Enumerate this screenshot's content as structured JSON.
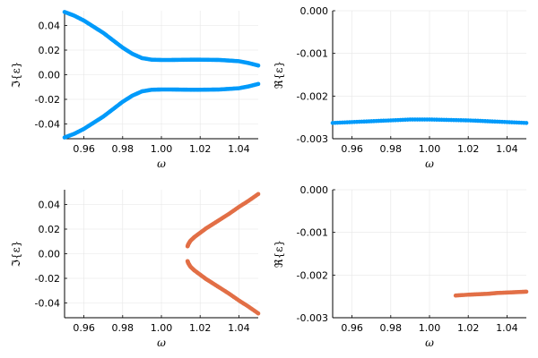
{
  "chart_data": [
    {
      "type": "scatter",
      "panel": "top-left",
      "xlabel": "ω",
      "ylabel": "ℑ{ε}",
      "xlim": [
        0.95,
        1.05
      ],
      "ylim": [
        -0.052,
        0.052
      ],
      "xticks": [
        0.96,
        0.98,
        1.0,
        1.02,
        1.04
      ],
      "xtick_labels": [
        "0.96",
        "0.98",
        "1.00",
        "1.02",
        "1.04"
      ],
      "yticks": [
        -0.04,
        -0.02,
        0.0,
        0.02,
        0.04
      ],
      "ytick_labels": [
        "-0.04",
        "-0.02",
        "0.00",
        "0.02",
        "0.04"
      ],
      "grid": true,
      "color": "#009AFA",
      "series": [
        {
          "x": [
            0.95,
            0.955,
            0.96,
            0.965,
            0.97,
            0.975,
            0.98,
            0.985,
            0.99,
            0.995,
            1.0,
            1.005,
            1.01,
            1.015,
            1.02,
            1.025,
            1.03,
            1.035,
            1.04,
            1.045,
            1.05
          ],
          "y": [
            0.051,
            0.048,
            0.044,
            0.039,
            0.034,
            0.028,
            0.022,
            0.017,
            0.0135,
            0.0122,
            0.012,
            0.012,
            0.0121,
            0.0122,
            0.0122,
            0.0121,
            0.012,
            0.0115,
            0.011,
            0.0095,
            0.0075
          ]
        },
        {
          "x": [
            0.95,
            0.955,
            0.96,
            0.965,
            0.97,
            0.975,
            0.98,
            0.985,
            0.99,
            0.995,
            1.0,
            1.005,
            1.01,
            1.015,
            1.02,
            1.025,
            1.03,
            1.035,
            1.04,
            1.045,
            1.05
          ],
          "y": [
            -0.051,
            -0.048,
            -0.044,
            -0.039,
            -0.034,
            -0.028,
            -0.022,
            -0.017,
            -0.0135,
            -0.0122,
            -0.012,
            -0.012,
            -0.0121,
            -0.0122,
            -0.0122,
            -0.0121,
            -0.012,
            -0.0115,
            -0.011,
            -0.0095,
            -0.0075
          ]
        }
      ]
    },
    {
      "type": "scatter",
      "panel": "top-right",
      "xlabel": "ω",
      "ylabel": "ℜ{ε}",
      "xlim": [
        0.95,
        1.05
      ],
      "ylim": [
        -0.003,
        0.0
      ],
      "xticks": [
        0.96,
        0.98,
        1.0,
        1.02,
        1.04
      ],
      "xtick_labels": [
        "0.96",
        "0.98",
        "1.00",
        "1.02",
        "1.04"
      ],
      "yticks": [
        -0.003,
        -0.002,
        -0.001,
        0.0
      ],
      "ytick_labels": [
        "-0.003",
        "-0.002",
        "-0.001",
        "0.000"
      ],
      "grid": true,
      "color": "#009AFA",
      "series": [
        {
          "x": [
            0.95,
            0.96,
            0.97,
            0.98,
            0.99,
            1.0,
            1.01,
            1.02,
            1.03,
            1.04,
            1.05
          ],
          "y": [
            -0.00263,
            -0.00261,
            -0.00259,
            -0.00257,
            -0.00255,
            -0.00255,
            -0.00256,
            -0.00257,
            -0.00259,
            -0.00261,
            -0.00263
          ]
        }
      ]
    },
    {
      "type": "scatter",
      "panel": "bottom-left",
      "xlabel": "ω",
      "ylabel": "ℑ{ε}",
      "xlim": [
        0.95,
        1.05
      ],
      "ylim": [
        -0.052,
        0.052
      ],
      "xticks": [
        0.96,
        0.98,
        1.0,
        1.02,
        1.04
      ],
      "xtick_labels": [
        "0.96",
        "0.98",
        "1.00",
        "1.02",
        "1.04"
      ],
      "yticks": [
        -0.04,
        -0.02,
        0.0,
        0.02,
        0.04
      ],
      "ytick_labels": [
        "-0.04",
        "-0.02",
        "0.00",
        "0.02",
        "0.04"
      ],
      "grid": true,
      "color": "#E26F46",
      "series": [
        {
          "x": [
            1.0135,
            1.014,
            1.015,
            1.017,
            1.02,
            1.023,
            1.026,
            1.03,
            1.035,
            1.04,
            1.045,
            1.05
          ],
          "y": [
            0.006,
            0.008,
            0.0105,
            0.0135,
            0.017,
            0.0205,
            0.0235,
            0.0275,
            0.0325,
            0.038,
            0.043,
            0.0485
          ]
        },
        {
          "x": [
            1.0135,
            1.014,
            1.015,
            1.017,
            1.02,
            1.023,
            1.026,
            1.03,
            1.035,
            1.04,
            1.045,
            1.05
          ],
          "y": [
            -0.006,
            -0.008,
            -0.0105,
            -0.0135,
            -0.017,
            -0.0205,
            -0.0235,
            -0.0275,
            -0.0325,
            -0.038,
            -0.043,
            -0.0485
          ]
        }
      ]
    },
    {
      "type": "scatter",
      "panel": "bottom-right",
      "xlabel": "ω",
      "ylabel": "ℜ{ε}",
      "xlim": [
        0.95,
        1.05
      ],
      "ylim": [
        -0.003,
        0.0
      ],
      "xticks": [
        0.96,
        0.98,
        1.0,
        1.02,
        1.04
      ],
      "xtick_labels": [
        "0.96",
        "0.98",
        "1.00",
        "1.02",
        "1.04"
      ],
      "yticks": [
        -0.003,
        -0.002,
        -0.001,
        0.0
      ],
      "ytick_labels": [
        "-0.003",
        "-0.002",
        "-0.001",
        "0.000"
      ],
      "grid": true,
      "color": "#E26F46",
      "series": [
        {
          "x": [
            1.0135,
            1.02,
            1.025,
            1.03,
            1.035,
            1.04,
            1.045,
            1.05
          ],
          "y": [
            -0.00248,
            -0.00246,
            -0.00245,
            -0.00244,
            -0.00242,
            -0.00241,
            -0.0024,
            -0.00239
          ]
        }
      ]
    }
  ]
}
